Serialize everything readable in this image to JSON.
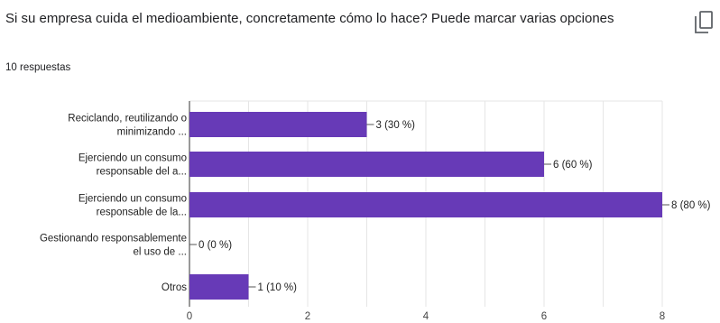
{
  "question": {
    "title": "Si su empresa cuida el medioambiente, concretamente cómo lo hace? Puede marcar varias opciones",
    "responses": "10 respuestas",
    "copy_icon": "copy-icon"
  },
  "colors": {
    "bar": "#673ab7",
    "grid": "#e6e6e6",
    "axis": "#333333",
    "text": "#202124"
  },
  "chart_data": {
    "type": "bar",
    "orientation": "horizontal",
    "categories": [
      [
        "Reciclando, reutilizando o",
        "minimizando ..."
      ],
      [
        "Ejerciendo un consumo",
        "responsable del a..."
      ],
      [
        "Ejerciendo un consumo",
        "responsable de la..."
      ],
      [
        "Gestionando responsablemente",
        "el uso de ..."
      ],
      [
        "Otros"
      ]
    ],
    "values": [
      3,
      6,
      8,
      0,
      1
    ],
    "data_labels": [
      "3 (30 %)",
      "6 (60 %)",
      "8 (80 %)",
      "0 (0 %)",
      "1 (10 %)"
    ],
    "xlim": [
      0,
      8
    ],
    "xticks": [
      0,
      2,
      4,
      6,
      8
    ],
    "grid": true,
    "title": "",
    "xlabel": "",
    "ylabel": ""
  }
}
